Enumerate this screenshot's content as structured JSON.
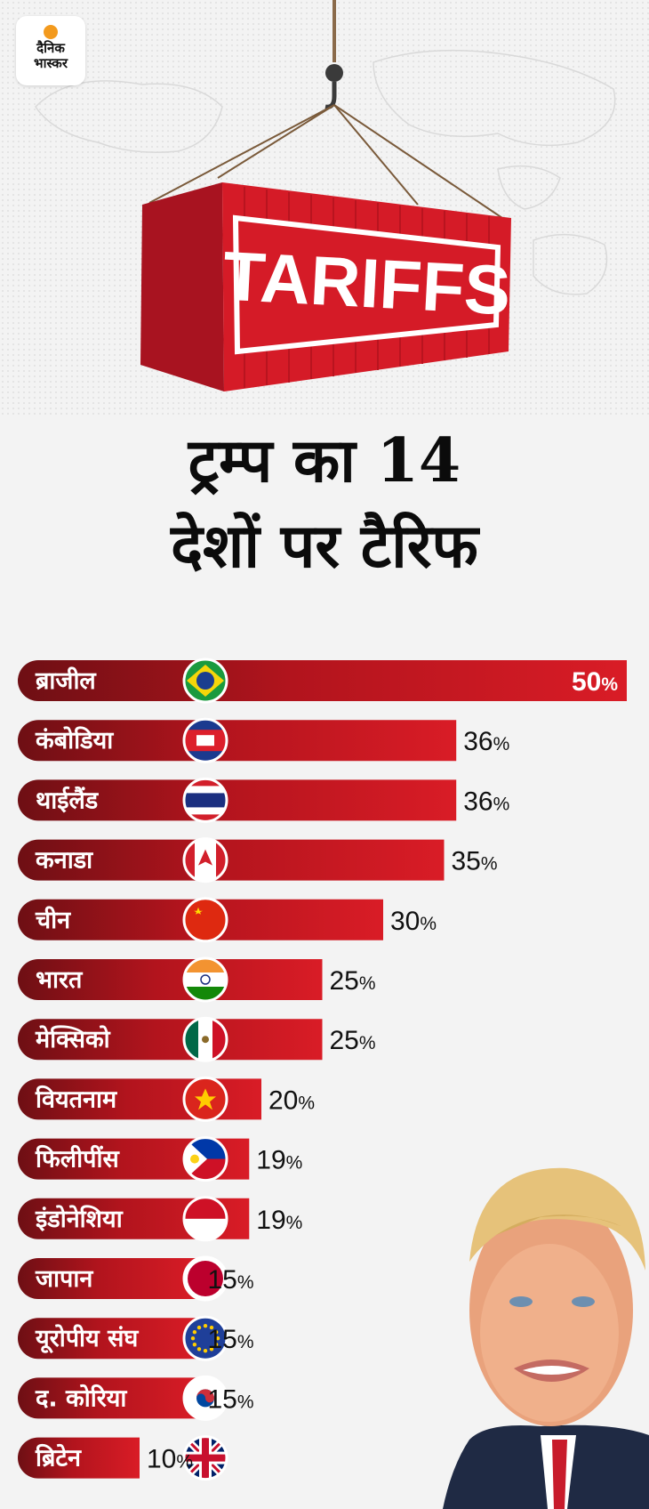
{
  "brand": {
    "line1": "दैनिक",
    "line2": "भास्कर"
  },
  "hero": {
    "container_text": "TARIFFS"
  },
  "title": {
    "line1": "ट्रम्प का 14",
    "line2": "देशों पर टैरिफ"
  },
  "colors": {
    "bar": "#d11a24",
    "bar_dark": "#6e0f14",
    "text": "#111111",
    "flag_ring": "#ffffff"
  },
  "chart_data": {
    "type": "bar",
    "orientation": "horizontal",
    "unit": "%",
    "categories": [
      "ब्राजील",
      "कंबोडिया",
      "थाईलैंड",
      "कनाडा",
      "चीन",
      "भारत",
      "मेक्सिको",
      "वियतनाम",
      "फिलीपींस",
      "इंडोनेशिया",
      "जापान",
      "यूरोपीय संघ",
      "द. कोरिया",
      "ब्रिटेन"
    ],
    "values": [
      50,
      36,
      36,
      35,
      30,
      25,
      25,
      20,
      19,
      19,
      15,
      15,
      15,
      10
    ],
    "value_labels": [
      "50",
      "36",
      "36",
      "35",
      "30",
      "25",
      "25",
      "20",
      "19",
      "19",
      "15",
      "15",
      "15",
      "10"
    ],
    "flag_icons": [
      "brazil-flag-icon",
      "cambodia-flag-icon",
      "thailand-flag-icon",
      "canada-flag-icon",
      "china-flag-icon",
      "india-flag-icon",
      "mexico-flag-icon",
      "vietnam-flag-icon",
      "philippines-flag-icon",
      "indonesia-flag-icon",
      "japan-flag-icon",
      "eu-flag-icon",
      "south-korea-flag-icon",
      "uk-flag-icon"
    ],
    "xlim": [
      0,
      50
    ],
    "grid": false,
    "title": "ट्रम्प का 14 देशों पर टैरिफ"
  }
}
